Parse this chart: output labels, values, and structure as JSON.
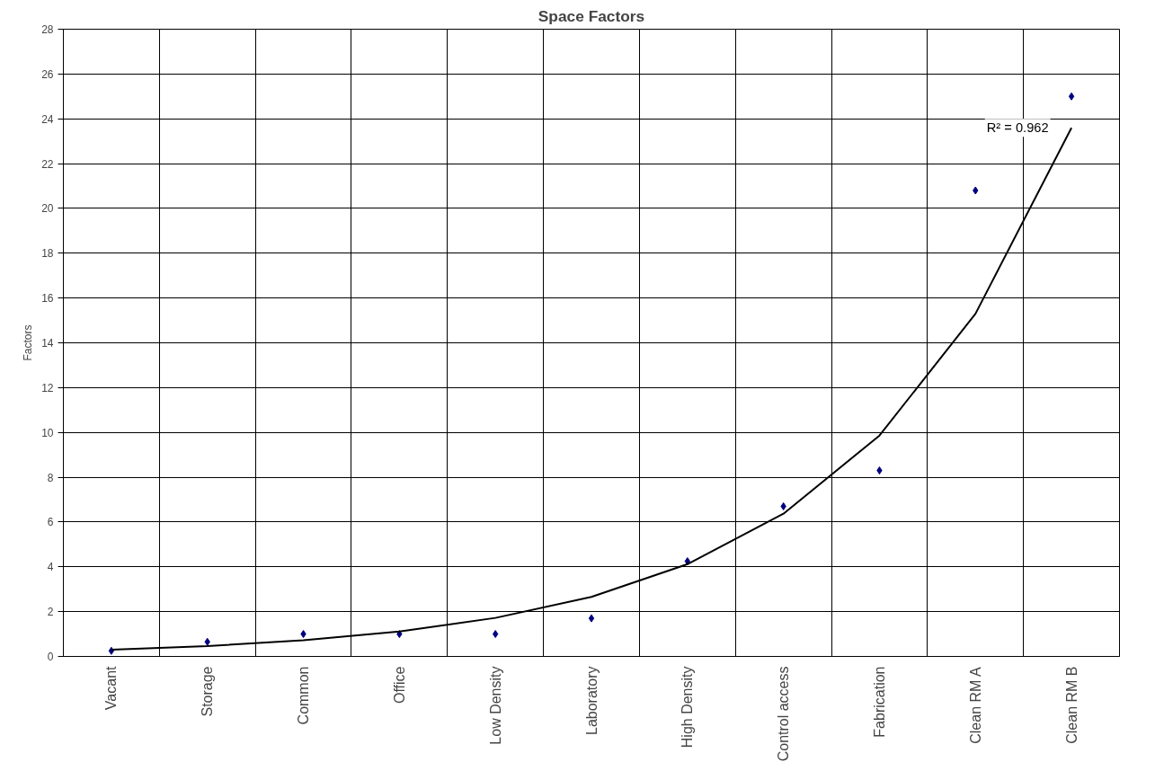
{
  "chart_data": {
    "type": "scatter",
    "title": "Space Factors",
    "ylabel": "Factors",
    "categories": [
      "Vacant",
      "Storage",
      "Common",
      "Office",
      "Low Density",
      "Laboratory",
      "High Density",
      "Control access",
      "Fabrication",
      "Clean RM A",
      "Clean RM B"
    ],
    "series": [
      {
        "color": "#000080",
        "values": [
          0.25,
          0.65,
          1.0,
          1.0,
          1.0,
          1.7,
          4.25,
          6.7,
          8.3,
          20.8,
          25.0
        ]
      },
      {
        "type": "line",
        "color": "#000000",
        "marker": "none",
        "values": [
          0.3,
          0.46,
          0.72,
          1.11,
          1.72,
          2.66,
          4.12,
          6.37,
          9.86,
          15.3,
          23.6
        ]
      }
    ],
    "annotations": [
      "R² = 0.962"
    ],
    "ylim": [
      0,
      28
    ],
    "yticks": [
      0,
      2,
      4,
      6,
      8,
      10,
      12,
      14,
      16,
      18,
      20,
      22,
      24,
      26,
      28
    ],
    "grid": true,
    "marker": "diamond"
  }
}
